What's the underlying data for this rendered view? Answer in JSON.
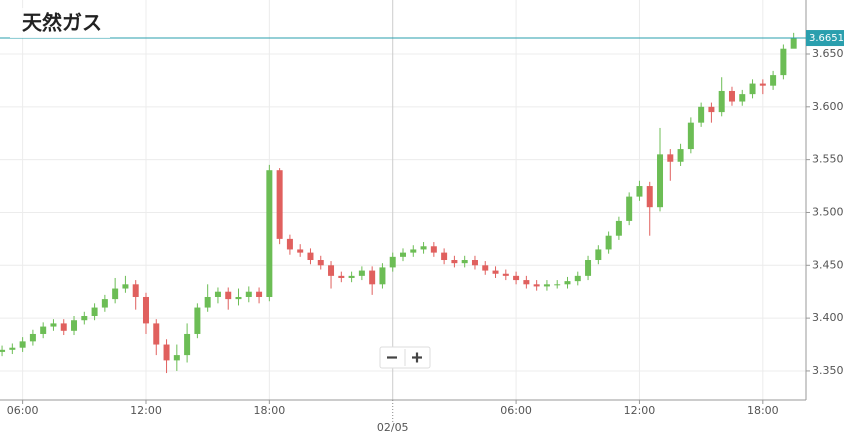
{
  "chart_data": {
    "type": "candlestick",
    "title": "天然ガス",
    "x": [
      5.0,
      5.5,
      6.0,
      6.5,
      7.0,
      7.5,
      8.0,
      8.5,
      9.0,
      9.5,
      10.0,
      10.5,
      11.0,
      11.5,
      12.0,
      12.5,
      13.0,
      13.5,
      14.0,
      14.5,
      15.0,
      15.5,
      16.0,
      16.5,
      17.0,
      17.5,
      18.0,
      18.5,
      19.0,
      19.5,
      20.0,
      20.5,
      21.0,
      21.5,
      22.0,
      22.5,
      23.0,
      23.5,
      24.0,
      24.5,
      25.0,
      25.5,
      26.0,
      26.5,
      27.0,
      27.5,
      28.0,
      28.5,
      29.0,
      29.5,
      30.0,
      30.5,
      31.0,
      31.5,
      32.0,
      32.5,
      33.0,
      33.5,
      34.0,
      34.5,
      35.0,
      35.5,
      36.0,
      36.5,
      37.0,
      37.5,
      38.0,
      38.5,
      39.0,
      39.5,
      40.0,
      40.5,
      41.0,
      41.5,
      42.0,
      42.5,
      43.0,
      43.5
    ],
    "open": [
      3.368,
      3.37,
      3.372,
      3.378,
      3.385,
      3.392,
      3.395,
      3.388,
      3.398,
      3.402,
      3.41,
      3.418,
      3.428,
      3.432,
      3.42,
      3.395,
      3.375,
      3.36,
      3.365,
      3.385,
      3.41,
      3.42,
      3.425,
      3.418,
      3.42,
      3.425,
      3.42,
      3.54,
      3.475,
      3.465,
      3.462,
      3.455,
      3.45,
      3.44,
      3.438,
      3.44,
      3.445,
      3.432,
      3.448,
      3.458,
      3.462,
      3.465,
      3.468,
      3.462,
      3.455,
      3.452,
      3.455,
      3.45,
      3.445,
      3.442,
      3.44,
      3.436,
      3.432,
      3.43,
      3.432,
      3.432,
      3.435,
      3.44,
      3.455,
      3.465,
      3.478,
      3.492,
      3.515,
      3.525,
      3.505,
      3.555,
      3.548,
      3.56,
      3.585,
      3.6,
      3.595,
      3.615,
      3.605,
      3.612,
      3.622,
      3.62,
      3.63,
      3.655
    ],
    "high": [
      3.374,
      3.376,
      3.382,
      3.389,
      3.396,
      3.399,
      3.399,
      3.402,
      3.406,
      3.414,
      3.422,
      3.438,
      3.44,
      3.436,
      3.424,
      3.399,
      3.38,
      3.375,
      3.395,
      3.414,
      3.432,
      3.429,
      3.429,
      3.428,
      3.43,
      3.429,
      3.545,
      3.542,
      3.479,
      3.47,
      3.466,
      3.459,
      3.454,
      3.444,
      3.444,
      3.449,
      3.449,
      3.452,
      3.462,
      3.466,
      3.469,
      3.472,
      3.472,
      3.466,
      3.459,
      3.459,
      3.459,
      3.454,
      3.449,
      3.446,
      3.444,
      3.44,
      3.436,
      3.436,
      3.436,
      3.439,
      3.444,
      3.459,
      3.469,
      3.482,
      3.496,
      3.519,
      3.53,
      3.529,
      3.58,
      3.56,
      3.565,
      3.59,
      3.604,
      3.604,
      3.628,
      3.619,
      3.616,
      3.626,
      3.626,
      3.634,
      3.659,
      3.67
    ],
    "low": [
      3.364,
      3.366,
      3.368,
      3.374,
      3.381,
      3.388,
      3.384,
      3.384,
      3.394,
      3.398,
      3.406,
      3.414,
      3.424,
      3.408,
      3.385,
      3.365,
      3.348,
      3.35,
      3.358,
      3.381,
      3.406,
      3.414,
      3.408,
      3.412,
      3.415,
      3.414,
      3.416,
      3.47,
      3.46,
      3.458,
      3.451,
      3.446,
      3.428,
      3.434,
      3.434,
      3.436,
      3.422,
      3.428,
      3.444,
      3.454,
      3.458,
      3.461,
      3.458,
      3.451,
      3.448,
      3.448,
      3.446,
      3.441,
      3.438,
      3.436,
      3.432,
      3.428,
      3.426,
      3.426,
      3.428,
      3.428,
      3.431,
      3.436,
      3.451,
      3.461,
      3.474,
      3.488,
      3.511,
      3.478,
      3.501,
      3.53,
      3.544,
      3.556,
      3.581,
      3.585,
      3.591,
      3.601,
      3.601,
      3.608,
      3.612,
      3.616,
      3.626,
      3.658
    ],
    "close": [
      3.37,
      3.372,
      3.378,
      3.385,
      3.392,
      3.395,
      3.388,
      3.398,
      3.402,
      3.41,
      3.418,
      3.428,
      3.432,
      3.42,
      3.395,
      3.375,
      3.36,
      3.365,
      3.385,
      3.41,
      3.42,
      3.425,
      3.418,
      3.42,
      3.425,
      3.42,
      3.54,
      3.475,
      3.465,
      3.462,
      3.455,
      3.45,
      3.44,
      3.438,
      3.44,
      3.445,
      3.432,
      3.448,
      3.458,
      3.462,
      3.465,
      3.468,
      3.462,
      3.455,
      3.452,
      3.455,
      3.45,
      3.445,
      3.442,
      3.44,
      3.436,
      3.432,
      3.43,
      3.432,
      3.432,
      3.435,
      3.44,
      3.455,
      3.465,
      3.478,
      3.492,
      3.515,
      3.525,
      3.505,
      3.555,
      3.548,
      3.56,
      3.585,
      3.6,
      3.595,
      3.615,
      3.605,
      3.612,
      3.622,
      3.62,
      3.63,
      3.655,
      3.665
    ],
    "up_color": "#6cbd55",
    "down_color": "#e0605e",
    "last_price": 3.6651,
    "last_price_color": "#2a9fae",
    "xlim": [
      4.9,
      44.1
    ],
    "ylim": [
      3.3225,
      3.7011
    ],
    "xticks": [
      {
        "value": 6,
        "label": "06:00"
      },
      {
        "value": 12,
        "label": "12:00"
      },
      {
        "value": 18,
        "label": "18:00"
      },
      {
        "value": 30,
        "label": "06:00"
      },
      {
        "value": 36,
        "label": "12:00"
      },
      {
        "value": 42,
        "label": "18:00"
      }
    ],
    "date_ticks": [
      {
        "value": 24,
        "label": "02/05"
      }
    ],
    "yticks": [
      {
        "value": 3.35,
        "label": "3.3500"
      },
      {
        "value": 3.4,
        "label": "3.4000"
      },
      {
        "value": 3.45,
        "label": "3.4500"
      },
      {
        "value": 3.5,
        "label": "3.5000"
      },
      {
        "value": 3.55,
        "label": "3.5500"
      },
      {
        "value": 3.6,
        "label": "3.6000"
      },
      {
        "value": 3.65,
        "label": "3.6500"
      }
    ],
    "grid": true
  }
}
